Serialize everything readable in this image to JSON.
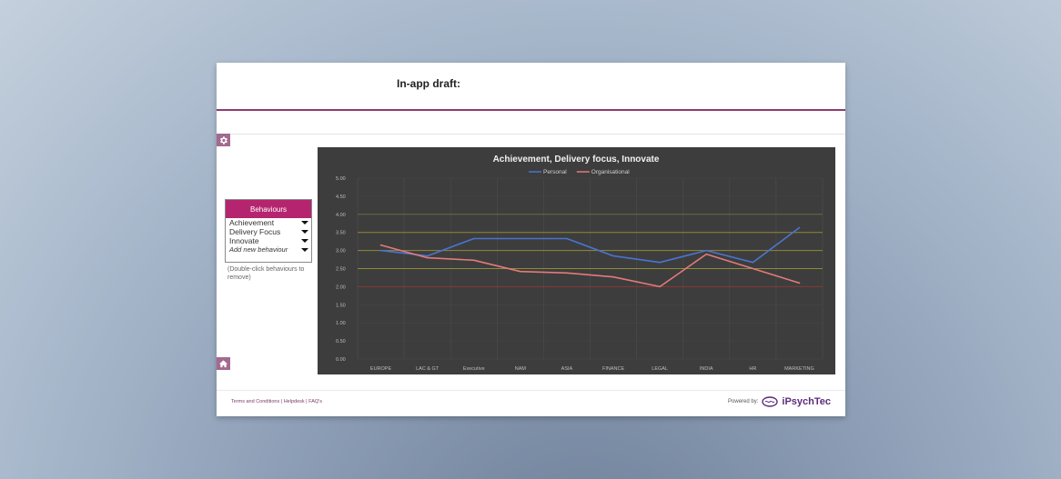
{
  "header": {
    "title": "In-app draft:"
  },
  "toolbar": {
    "settings_icon": "gear-icon",
    "home_icon": "home-icon"
  },
  "behaviours": {
    "heading": "Behaviours",
    "items": [
      {
        "label": "Achievement"
      },
      {
        "label": "Delivery Focus"
      },
      {
        "label": "Innovate"
      }
    ],
    "add_placeholder": "Add new behaviour",
    "hint": "(Double-click behaviours to remove)"
  },
  "chart_data": {
    "type": "line",
    "title": "Achievement, Delivery focus, Innovate",
    "categories": [
      "EUROPE",
      "LAC & GT",
      "Executive",
      "NAM",
      "ASIA",
      "FINANCE",
      "LEGAL",
      "INDIA",
      "HR",
      "MARKETING"
    ],
    "series": [
      {
        "name": "Personal",
        "color": "#4a74d0",
        "values": [
          3.0,
          2.85,
          3.33,
          3.33,
          3.33,
          2.85,
          2.67,
          3.0,
          2.67,
          3.63
        ]
      },
      {
        "name": "Organisational",
        "color": "#e57a7a",
        "values": [
          3.15,
          2.8,
          2.73,
          2.42,
          2.38,
          2.27,
          2.0,
          2.9,
          2.5,
          2.1
        ]
      }
    ],
    "ylim": [
      0,
      5
    ],
    "yticks": [
      "0.00",
      "0.50",
      "1.00",
      "1.50",
      "2.00",
      "2.50",
      "3.00",
      "3.50",
      "4.00",
      "4.50",
      "5.00"
    ],
    "legend_position": "top-center",
    "threshold_lines": [
      {
        "value": 2.0,
        "color": "#8a3a3a"
      },
      {
        "value": 2.5,
        "color": "#8f8a3a"
      },
      {
        "value": 3.0,
        "color": "#8f8a3a"
      },
      {
        "value": 3.5,
        "color": "#8f8a3a"
      },
      {
        "value": 4.0,
        "color": "#6b6b44"
      }
    ],
    "background": "#3d3d3d"
  },
  "footer": {
    "terms": "Terms and Conditions",
    "separator": " | ",
    "helpdesk": "Helpdesk",
    "faqs": "FAQ's",
    "powered_by": "Powered by:",
    "brand": "iPsychTec",
    "brand_color": "#5b2d7a"
  }
}
